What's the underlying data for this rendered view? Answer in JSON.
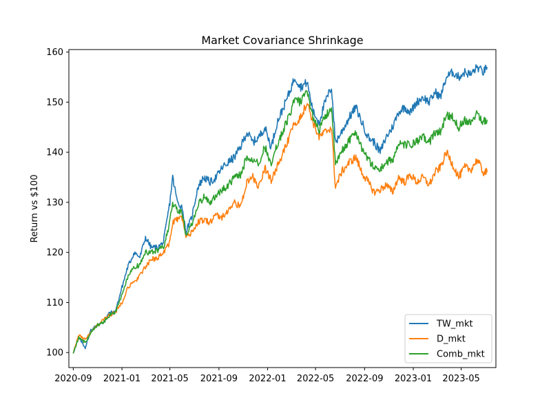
{
  "chart_data": {
    "type": "line",
    "title": "Market Covariance Shrinkage",
    "xlabel": "",
    "ylabel": "Return vs $100",
    "ylim": [
      97,
      160.5
    ],
    "xlim": [
      "2020-08-21",
      "2023-07-27"
    ],
    "yticks": [
      100,
      110,
      120,
      130,
      140,
      150,
      160
    ],
    "xticks": [
      "2020-09",
      "2021-01",
      "2021-05",
      "2021-09",
      "2022-01",
      "2022-05",
      "2022-09",
      "2023-01",
      "2023-05"
    ],
    "grid": false,
    "legend": {
      "position": "lower-right"
    },
    "series": [
      {
        "name": "TW_mkt",
        "color": "#1f77b4",
        "points": [
          [
            "2020-09-01",
            100.0
          ],
          [
            "2020-09-15",
            103.0
          ],
          [
            "2020-10-01",
            101.0
          ],
          [
            "2020-10-15",
            104.5
          ],
          [
            "2020-11-01",
            105.5
          ],
          [
            "2020-11-15",
            106.0
          ],
          [
            "2020-12-01",
            108.0
          ],
          [
            "2020-12-15",
            108.0
          ],
          [
            "2021-01-01",
            113.0
          ],
          [
            "2021-01-15",
            117.0
          ],
          [
            "2021-02-01",
            120.0
          ],
          [
            "2021-02-15",
            119.0
          ],
          [
            "2021-03-01",
            123.0
          ],
          [
            "2021-03-15",
            121.0
          ],
          [
            "2021-04-01",
            121.0
          ],
          [
            "2021-04-15",
            122.0
          ],
          [
            "2021-05-01",
            130.0
          ],
          [
            "2021-05-08",
            135.0
          ],
          [
            "2021-05-20",
            130.0
          ],
          [
            "2021-06-01",
            129.0
          ],
          [
            "2021-06-10",
            124.0
          ],
          [
            "2021-06-25",
            127.0
          ],
          [
            "2021-07-10",
            133.0
          ],
          [
            "2021-07-25",
            135.0
          ],
          [
            "2021-08-10",
            134.0
          ],
          [
            "2021-08-25",
            135.0
          ],
          [
            "2021-09-10",
            137.0
          ],
          [
            "2021-09-25",
            138.0
          ],
          [
            "2021-10-10",
            139.0
          ],
          [
            "2021-10-25",
            141.0
          ],
          [
            "2021-11-10",
            144.0
          ],
          [
            "2021-11-25",
            142.0
          ],
          [
            "2021-12-10",
            143.0
          ],
          [
            "2021-12-25",
            145.0
          ],
          [
            "2022-01-10",
            141.0
          ],
          [
            "2022-01-25",
            146.0
          ],
          [
            "2022-02-10",
            149.0
          ],
          [
            "2022-02-25",
            152.0
          ],
          [
            "2022-03-10",
            155.0
          ],
          [
            "2022-03-25",
            153.0
          ],
          [
            "2022-04-10",
            154.0
          ],
          [
            "2022-04-25",
            148.0
          ],
          [
            "2022-05-10",
            146.0
          ],
          [
            "2022-05-25",
            150.0
          ],
          [
            "2022-06-10",
            153.0
          ],
          [
            "2022-06-20",
            142.0
          ],
          [
            "2022-07-05",
            144.0
          ],
          [
            "2022-07-25",
            147.0
          ],
          [
            "2022-08-10",
            149.0
          ],
          [
            "2022-08-25",
            146.0
          ],
          [
            "2022-09-10",
            143.0
          ],
          [
            "2022-09-25",
            142.0
          ],
          [
            "2022-10-10",
            140.0
          ],
          [
            "2022-10-25",
            143.0
          ],
          [
            "2022-11-10",
            145.0
          ],
          [
            "2022-11-25",
            148.0
          ],
          [
            "2022-12-10",
            149.0
          ],
          [
            "2022-12-25",
            148.0
          ],
          [
            "2023-01-10",
            150.0
          ],
          [
            "2023-01-25",
            151.0
          ],
          [
            "2023-02-10",
            150.0
          ],
          [
            "2023-02-25",
            152.0
          ],
          [
            "2023-03-10",
            151.0
          ],
          [
            "2023-03-25",
            155.0
          ],
          [
            "2023-04-10",
            156.0
          ],
          [
            "2023-04-25",
            155.0
          ],
          [
            "2023-05-10",
            156.0
          ],
          [
            "2023-05-25",
            155.5
          ],
          [
            "2023-06-10",
            157.0
          ],
          [
            "2023-06-25",
            156.0
          ],
          [
            "2023-07-05",
            157.0
          ]
        ]
      },
      {
        "name": "D_mkt",
        "color": "#ff7f0e",
        "points": [
          [
            "2020-09-01",
            100.0
          ],
          [
            "2020-09-15",
            103.5
          ],
          [
            "2020-10-01",
            102.5
          ],
          [
            "2020-10-15",
            104.0
          ],
          [
            "2020-11-01",
            105.5
          ],
          [
            "2020-11-15",
            106.5
          ],
          [
            "2020-12-01",
            107.5
          ],
          [
            "2020-12-15",
            108.0
          ],
          [
            "2021-01-01",
            110.0
          ],
          [
            "2021-01-15",
            113.0
          ],
          [
            "2021-02-01",
            114.0
          ],
          [
            "2021-02-15",
            115.5
          ],
          [
            "2021-03-01",
            117.0
          ],
          [
            "2021-03-15",
            118.5
          ],
          [
            "2021-04-01",
            119.0
          ],
          [
            "2021-04-15",
            120.0
          ],
          [
            "2021-05-01",
            122.0
          ],
          [
            "2021-05-08",
            126.0
          ],
          [
            "2021-05-20",
            126.5
          ],
          [
            "2021-06-01",
            127.0
          ],
          [
            "2021-06-10",
            123.0
          ],
          [
            "2021-06-25",
            124.0
          ],
          [
            "2021-07-10",
            126.0
          ],
          [
            "2021-07-25",
            126.5
          ],
          [
            "2021-08-10",
            126.0
          ],
          [
            "2021-08-25",
            127.5
          ],
          [
            "2021-09-10",
            127.0
          ],
          [
            "2021-09-25",
            128.5
          ],
          [
            "2021-10-10",
            130.0
          ],
          [
            "2021-10-25",
            129.0
          ],
          [
            "2021-11-10",
            134.0
          ],
          [
            "2021-11-25",
            135.0
          ],
          [
            "2021-12-10",
            133.0
          ],
          [
            "2021-12-25",
            137.0
          ],
          [
            "2022-01-10",
            134.5
          ],
          [
            "2022-01-25",
            137.0
          ],
          [
            "2022-02-10",
            140.0
          ],
          [
            "2022-02-25",
            143.0
          ],
          [
            "2022-03-10",
            146.0
          ],
          [
            "2022-03-25",
            147.0
          ],
          [
            "2022-04-10",
            150.0
          ],
          [
            "2022-04-25",
            146.0
          ],
          [
            "2022-05-10",
            143.0
          ],
          [
            "2022-05-25",
            144.0
          ],
          [
            "2022-06-10",
            145.0
          ],
          [
            "2022-06-20",
            133.0
          ],
          [
            "2022-07-05",
            136.0
          ],
          [
            "2022-07-25",
            138.0
          ],
          [
            "2022-08-10",
            139.0
          ],
          [
            "2022-08-25",
            136.0
          ],
          [
            "2022-09-10",
            134.0
          ],
          [
            "2022-09-25",
            132.0
          ],
          [
            "2022-10-10",
            132.5
          ],
          [
            "2022-10-25",
            133.5
          ],
          [
            "2022-11-10",
            132.0
          ],
          [
            "2022-11-25",
            135.0
          ],
          [
            "2022-12-10",
            134.0
          ],
          [
            "2022-12-25",
            135.5
          ],
          [
            "2023-01-10",
            134.0
          ],
          [
            "2023-01-25",
            135.0
          ],
          [
            "2023-02-10",
            133.5
          ],
          [
            "2023-02-25",
            136.0
          ],
          [
            "2023-03-10",
            137.0
          ],
          [
            "2023-03-25",
            140.0
          ],
          [
            "2023-04-10",
            137.5
          ],
          [
            "2023-04-25",
            135.0
          ],
          [
            "2023-05-10",
            137.0
          ],
          [
            "2023-05-25",
            136.5
          ],
          [
            "2023-06-10",
            138.5
          ],
          [
            "2023-06-25",
            136.0
          ],
          [
            "2023-07-05",
            136.0
          ]
        ]
      },
      {
        "name": "Comb_mkt",
        "color": "#2ca02c",
        "points": [
          [
            "2020-09-01",
            100.0
          ],
          [
            "2020-09-15",
            103.0
          ],
          [
            "2020-10-01",
            102.0
          ],
          [
            "2020-10-15",
            104.0
          ],
          [
            "2020-11-01",
            105.5
          ],
          [
            "2020-11-15",
            106.0
          ],
          [
            "2020-12-01",
            107.5
          ],
          [
            "2020-12-15",
            108.0
          ],
          [
            "2021-01-01",
            111.5
          ],
          [
            "2021-01-15",
            115.0
          ],
          [
            "2021-02-01",
            117.0
          ],
          [
            "2021-02-15",
            117.5
          ],
          [
            "2021-03-01",
            120.0
          ],
          [
            "2021-03-15",
            120.0
          ],
          [
            "2021-04-01",
            120.5
          ],
          [
            "2021-04-15",
            121.0
          ],
          [
            "2021-05-01",
            126.0
          ],
          [
            "2021-05-08",
            130.0
          ],
          [
            "2021-05-20",
            128.5
          ],
          [
            "2021-06-01",
            128.0
          ],
          [
            "2021-06-10",
            123.5
          ],
          [
            "2021-06-25",
            125.5
          ],
          [
            "2021-07-10",
            129.5
          ],
          [
            "2021-07-25",
            131.0
          ],
          [
            "2021-08-10",
            130.0
          ],
          [
            "2021-08-25",
            131.5
          ],
          [
            "2021-09-10",
            132.5
          ],
          [
            "2021-09-25",
            133.5
          ],
          [
            "2021-10-10",
            135.0
          ],
          [
            "2021-10-25",
            135.5
          ],
          [
            "2021-11-10",
            139.0
          ],
          [
            "2021-11-25",
            138.5
          ],
          [
            "2021-12-10",
            138.0
          ],
          [
            "2021-12-25",
            141.0
          ],
          [
            "2022-01-10",
            138.0
          ],
          [
            "2022-01-25",
            141.5
          ],
          [
            "2022-02-10",
            144.5
          ],
          [
            "2022-02-25",
            147.5
          ],
          [
            "2022-03-10",
            150.5
          ],
          [
            "2022-03-25",
            150.0
          ],
          [
            "2022-04-10",
            152.0
          ],
          [
            "2022-04-25",
            147.0
          ],
          [
            "2022-05-10",
            144.5
          ],
          [
            "2022-05-25",
            147.0
          ],
          [
            "2022-06-10",
            149.0
          ],
          [
            "2022-06-20",
            137.5
          ],
          [
            "2022-07-05",
            140.0
          ],
          [
            "2022-07-25",
            142.5
          ],
          [
            "2022-08-10",
            144.0
          ],
          [
            "2022-08-25",
            141.0
          ],
          [
            "2022-09-10",
            138.5
          ],
          [
            "2022-09-25",
            137.0
          ],
          [
            "2022-10-10",
            136.5
          ],
          [
            "2022-10-25",
            138.0
          ],
          [
            "2022-11-10",
            138.5
          ],
          [
            "2022-11-25",
            141.5
          ],
          [
            "2022-12-10",
            141.5
          ],
          [
            "2022-12-25",
            141.5
          ],
          [
            "2023-01-10",
            142.0
          ],
          [
            "2023-01-25",
            143.0
          ],
          [
            "2023-02-10",
            142.0
          ],
          [
            "2023-02-25",
            144.0
          ],
          [
            "2023-03-10",
            144.0
          ],
          [
            "2023-03-25",
            147.5
          ],
          [
            "2023-04-10",
            147.0
          ],
          [
            "2023-04-25",
            145.0
          ],
          [
            "2023-05-10",
            146.5
          ],
          [
            "2023-05-25",
            146.0
          ],
          [
            "2023-06-10",
            148.0
          ],
          [
            "2023-06-25",
            146.0
          ],
          [
            "2023-07-05",
            146.5
          ]
        ]
      }
    ]
  }
}
